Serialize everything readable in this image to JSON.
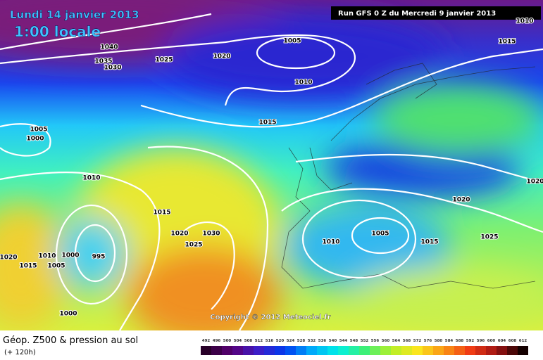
{
  "header": {
    "date": "Lundi 14 janvier 2013",
    "time": "1:00 locale",
    "run": "Run GFS 0 Z du Mercredi 9 janvier 2013"
  },
  "isobar_labels": [
    1040,
    1035,
    1030,
    1025,
    1020,
    1005,
    1010,
    1015,
    1015,
    1010,
    1005,
    1000,
    1010,
    1015,
    1020,
    1030,
    1025,
    1020,
    1010,
    1000,
    995,
    1015,
    1005,
    1000,
    1010,
    1005,
    1015,
    1020,
    1025,
    1020
  ],
  "copyright": "Copyright © 2012 Meteociel.fr",
  "footer": {
    "title": "Géop. Z500 & pression au sol",
    "lead": "(+ 120h)"
  },
  "scale_labels": [
    492,
    496,
    500,
    504,
    508,
    512,
    516,
    520,
    524,
    528,
    532,
    536,
    540,
    544,
    548,
    552,
    556,
    560,
    564,
    568,
    572,
    576,
    580,
    584,
    588,
    592,
    596,
    600,
    604,
    608,
    612
  ]
}
